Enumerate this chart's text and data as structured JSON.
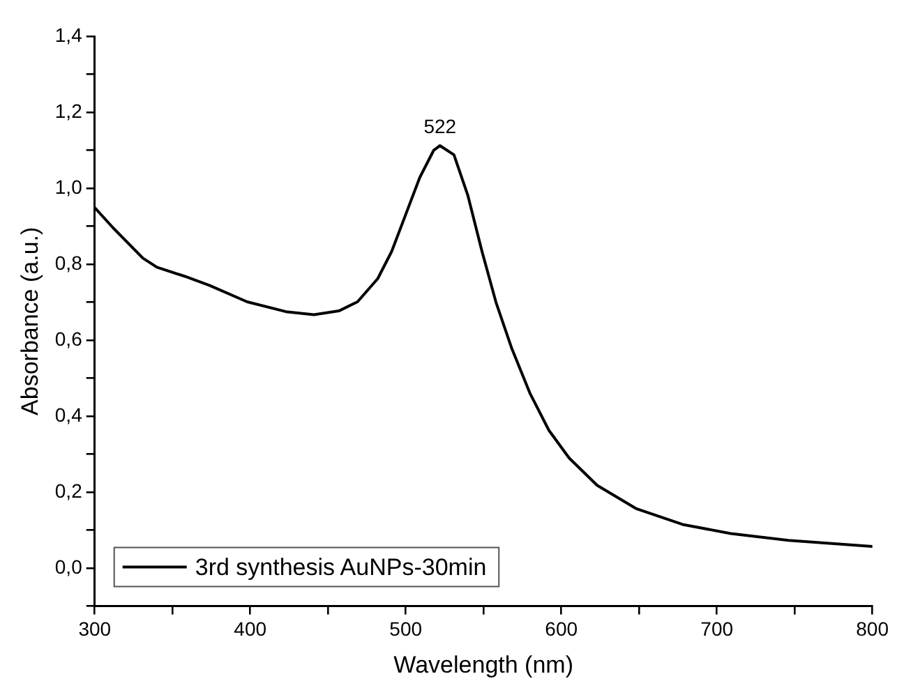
{
  "chart_data": {
    "type": "line",
    "xlabel": "Wavelength (nm)",
    "ylabel": "Absorbance (a.u.)",
    "x": [
      300,
      312,
      331,
      340,
      358,
      374,
      398,
      423,
      441,
      457,
      469,
      482,
      491,
      500,
      509,
      518,
      522,
      531,
      540,
      549,
      558,
      568,
      580,
      592,
      605,
      623,
      648,
      678,
      709,
      746,
      800
    ],
    "series": [
      {
        "name": "3rd synthesis AuNPs-30min",
        "color": "#000000",
        "values": [
          0.949,
          0.895,
          0.816,
          0.792,
          0.768,
          0.744,
          0.701,
          0.675,
          0.667,
          0.677,
          0.701,
          0.762,
          0.834,
          0.931,
          1.028,
          1.1,
          1.112,
          1.088,
          0.98,
          0.834,
          0.7,
          0.58,
          0.459,
          0.363,
          0.29,
          0.218,
          0.157,
          0.115,
          0.091,
          0.073,
          0.057
        ]
      }
    ],
    "annotations": [
      {
        "text": "522",
        "x": 522,
        "y": 1.112
      }
    ],
    "xlim": [
      300,
      800
    ],
    "xticks": [
      300,
      {
        "value": 350,
        "label": null
      },
      400,
      {
        "value": 450,
        "label": null
      },
      500,
      {
        "value": 550,
        "label": null
      },
      600,
      {
        "value": 650,
        "label": null
      },
      700,
      {
        "value": 750,
        "label": null
      },
      800
    ],
    "ylim": [
      -0.1,
      1.4
    ],
    "yticks": [
      {
        "value": -0.1,
        "label": null
      },
      {
        "value": 0,
        "label": "0,0"
      },
      {
        "value": 0.1,
        "label": null
      },
      {
        "value": 0.2,
        "label": "0,2"
      },
      {
        "value": 0.3,
        "label": null
      },
      {
        "value": 0.4,
        "label": "0,4"
      },
      {
        "value": 0.5,
        "label": null
      },
      {
        "value": 0.6,
        "label": "0,6"
      },
      {
        "value": 0.7,
        "label": null
      },
      {
        "value": 0.8,
        "label": "0,8"
      },
      {
        "value": 0.9,
        "label": null
      },
      {
        "value": 1.0,
        "label": "1,0"
      },
      {
        "value": 1.1,
        "label": null
      },
      {
        "value": 1.2,
        "label": "1,2"
      },
      {
        "value": 1.3,
        "label": null
      },
      {
        "value": 1.4,
        "label": "1,4"
      }
    ],
    "grid": false,
    "legend": "bottom left",
    "marker": "none",
    "line_style": "solid"
  }
}
